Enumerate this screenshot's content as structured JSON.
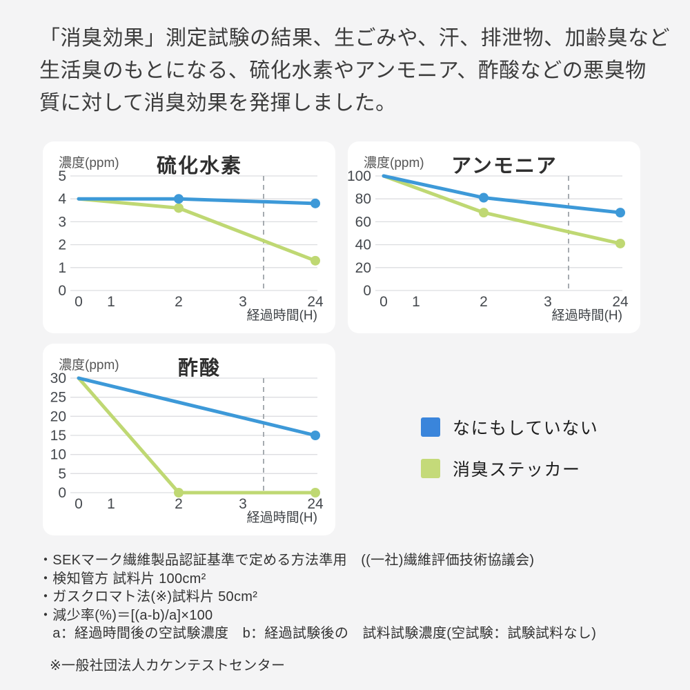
{
  "header": {
    "lines": [
      "「消臭効果」測定試験の結果、生ごみや、汗、排泄物、加齢臭など",
      "生活臭のもとになる、硫化水素やアンモニア、酢酸などの悪臭物",
      "質に対して消臭効果を発揮しました。"
    ]
  },
  "colors": {
    "page_background": "#f4f4f5",
    "card_background": "#ffffff",
    "line_blue": "#3d99d8",
    "line_green": "#bfd873",
    "legend_blue": "#3a85db",
    "legend_green": "#c4da79",
    "gridline": "#dcdde0",
    "break_line": "#a6abb0",
    "tick_text": "#45494e",
    "title_text": "#2f2f2f"
  },
  "chart_data": [
    {
      "type": "line",
      "id": "hydrogen-sulfide",
      "title": "硫化水素",
      "ylabel": "濃度(ppm)",
      "xlabel": "経過時間(H)",
      "x_ticklabels": [
        "0",
        "1",
        "2",
        "3",
        "24"
      ],
      "yticks": [
        0,
        1,
        2,
        3,
        4,
        5
      ],
      "ylim": [
        0,
        5
      ],
      "axis_break_after": "3",
      "grid": true,
      "series": [
        {
          "name": "なにもしていない",
          "color": "#3d99d8",
          "x": [
            "0",
            "2",
            "24"
          ],
          "values": [
            4,
            4,
            3.8
          ],
          "markers": [
            false,
            true,
            true
          ]
        },
        {
          "name": "消臭ステッカー",
          "color": "#bfd873",
          "x": [
            "0",
            "2",
            "24"
          ],
          "values": [
            4,
            3.6,
            1.3
          ],
          "markers": [
            false,
            true,
            true
          ]
        }
      ]
    },
    {
      "type": "line",
      "id": "ammonia",
      "title": "アンモニア",
      "ylabel": "濃度(ppm)",
      "xlabel": "経過時間(H)",
      "x_ticklabels": [
        "0",
        "1",
        "2",
        "3",
        "24"
      ],
      "yticks": [
        0,
        20,
        40,
        60,
        80,
        100
      ],
      "ylim": [
        0,
        100
      ],
      "axis_break_after": "3",
      "grid": true,
      "series": [
        {
          "name": "なにもしていない",
          "color": "#3d99d8",
          "x": [
            "0",
            "2",
            "24"
          ],
          "values": [
            100,
            81,
            68
          ],
          "markers": [
            false,
            true,
            true
          ]
        },
        {
          "name": "消臭ステッカー",
          "color": "#bfd873",
          "x": [
            "0",
            "2",
            "24"
          ],
          "values": [
            100,
            68,
            41
          ],
          "markers": [
            false,
            true,
            true
          ]
        }
      ]
    },
    {
      "type": "line",
      "id": "acetic-acid",
      "title": "酢酸",
      "ylabel": "濃度(ppm)",
      "xlabel": "経過時間(H)",
      "x_ticklabels": [
        "0",
        "1",
        "2",
        "3",
        "24"
      ],
      "yticks": [
        0,
        5,
        10,
        15,
        20,
        25,
        30
      ],
      "ylim": [
        0,
        30
      ],
      "axis_break_after": "3",
      "grid": true,
      "series": [
        {
          "name": "なにもしていない",
          "color": "#3d99d8",
          "x": [
            "0",
            "24"
          ],
          "values": [
            30,
            15
          ],
          "markers": [
            false,
            true
          ]
        },
        {
          "name": "消臭ステッカー",
          "color": "#bfd873",
          "x": [
            "0",
            "2",
            "24"
          ],
          "values": [
            30,
            0,
            0
          ],
          "markers": [
            false,
            true,
            true
          ]
        }
      ]
    }
  ],
  "legend": {
    "items": [
      {
        "label": "なにもしていない",
        "color": "#3a85db"
      },
      {
        "label": "消臭ステッカー",
        "color": "#c4da79"
      }
    ]
  },
  "footnotes": {
    "lines": [
      "・SEKマーク繊維製品認証基準で定める方法準用　((一社)繊維評価技術協議会)",
      "・検知管方 試料片 100cm²",
      "・ガスクロマト法(※)試料片 50cm²",
      "・減少率(%)＝[(a-b)/a]×100",
      "　a：経過時間後の空試験濃度　b：経過試験後の　試料試験濃度(空試験：試験試料なし)"
    ],
    "note": "※一般社団法人カケンテストセンター"
  }
}
